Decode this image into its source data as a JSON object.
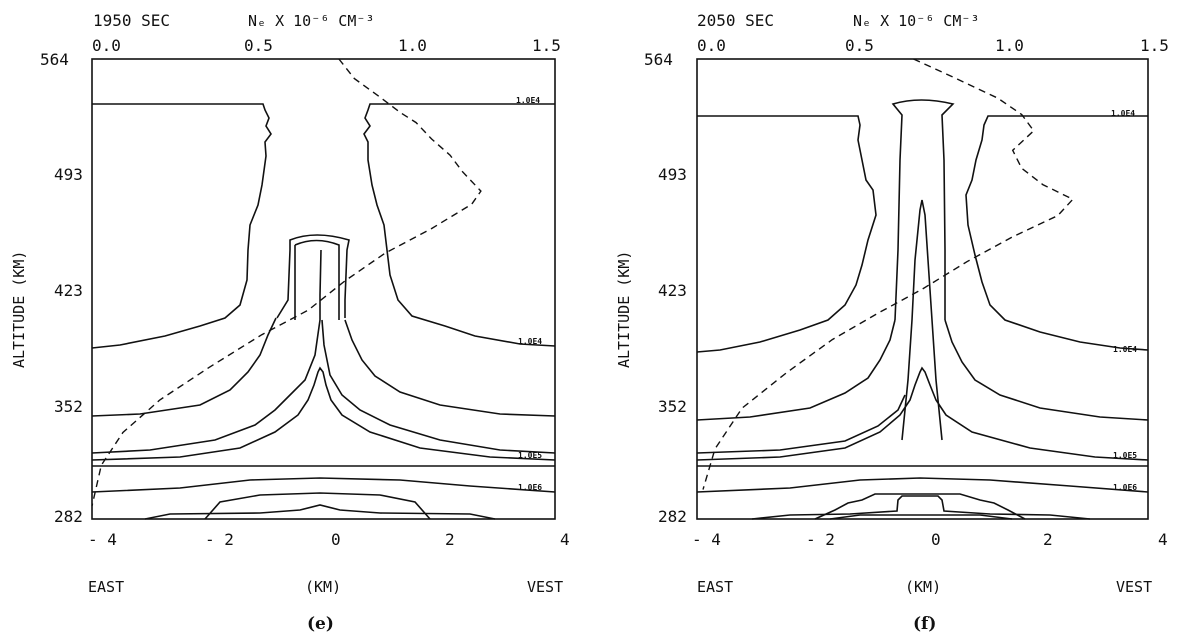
{
  "figure": {
    "panels": [
      {
        "caption": "(e)",
        "time_label": "1950 SEC",
        "density_axis_label": "Nₑ X 10⁻⁶ CM⁻³",
        "y_axis_label": "ALTITUDE (KM)",
        "x_center_label": "(KM)",
        "x_left_label": "EAST",
        "x_right_label": "VEST",
        "x_ticks": [
          "- 4",
          "- 2",
          "0",
          "2",
          "4"
        ],
        "y_ticks": [
          "564",
          "493",
          "423",
          "352",
          "282"
        ],
        "top_ticks": [
          "0.0",
          "0.5",
          "1.0",
          "1.5"
        ],
        "contour_labels": [
          "1.0E4",
          "1.0E4",
          "1.0E5",
          "1.0E6"
        ]
      },
      {
        "caption": "(f)",
        "time_label": "2050 SEC",
        "density_axis_label": "Nₑ X 10⁻⁶ CM⁻³",
        "y_axis_label": "ALTITUDE (KM)",
        "x_center_label": "(KM)",
        "x_left_label": "EAST",
        "x_right_label": "VEST",
        "x_ticks": [
          "- 4",
          "- 2",
          "0",
          "2",
          "4"
        ],
        "y_ticks": [
          "564",
          "493",
          "423",
          "352",
          "282"
        ],
        "top_ticks": [
          "0.0",
          "0.5",
          "1.0",
          "1.5"
        ],
        "contour_labels": [
          "1.0E4",
          "1.0E4",
          "1.0E5",
          "1.0E6"
        ]
      }
    ]
  },
  "chart_data": [
    {
      "type": "line",
      "title": "1950 SEC",
      "xlabel": "(KM)",
      "ylabel": "ALTITUDE (KM)",
      "xlim": [
        -4,
        4
      ],
      "ylim": [
        282,
        564
      ],
      "top_axis": {
        "label": "Nₑ X 10⁻⁶ CM⁻³",
        "lim": [
          0.0,
          1.5
        ]
      },
      "series": [
        {
          "x": [
            0.8,
            0.85,
            0.93,
            1.0,
            1.05,
            1.1,
            1.16,
            1.2,
            1.26,
            1.23,
            1.1,
            0.95,
            0.82,
            0.7,
            0.55,
            0.38,
            0.22,
            0.1,
            0.03,
            0.0
          ],
          "y": [
            564,
            552,
            541,
            531,
            525,
            515,
            505,
            495,
            483,
            475,
            460,
            445,
            428,
            410,
            395,
            375,
            355,
            335,
            315,
            290
          ]
        }
      ],
      "contour_levels": [
        "1.0E4",
        "1.0E4",
        "1.0E5",
        "1.0E6"
      ]
    },
    {
      "type": "line",
      "title": "2050 SEC",
      "xlabel": "(KM)",
      "ylabel": "ALTITUDE (KM)",
      "xlim": [
        -4,
        4
      ],
      "ylim": [
        282,
        564
      ],
      "top_axis": {
        "label": "Nₑ X 10⁻⁶ CM⁻³",
        "lim": [
          0.0,
          1.5
        ]
      },
      "series": [
        {
          "x": [
            0.72,
            0.85,
            1.0,
            1.08,
            1.12,
            1.05,
            1.08,
            1.15,
            1.25,
            1.2,
            1.05,
            0.9,
            0.75,
            0.6,
            0.45,
            0.3,
            0.15,
            0.06,
            0.02
          ],
          "y": [
            564,
            553,
            540,
            530,
            520,
            508,
            497,
            487,
            478,
            468,
            455,
            440,
            423,
            408,
            392,
            372,
            350,
            325,
            300
          ]
        }
      ],
      "contour_levels": [
        "1.0E4",
        "1.0E4",
        "1.0E5",
        "1.0E6"
      ]
    }
  ]
}
